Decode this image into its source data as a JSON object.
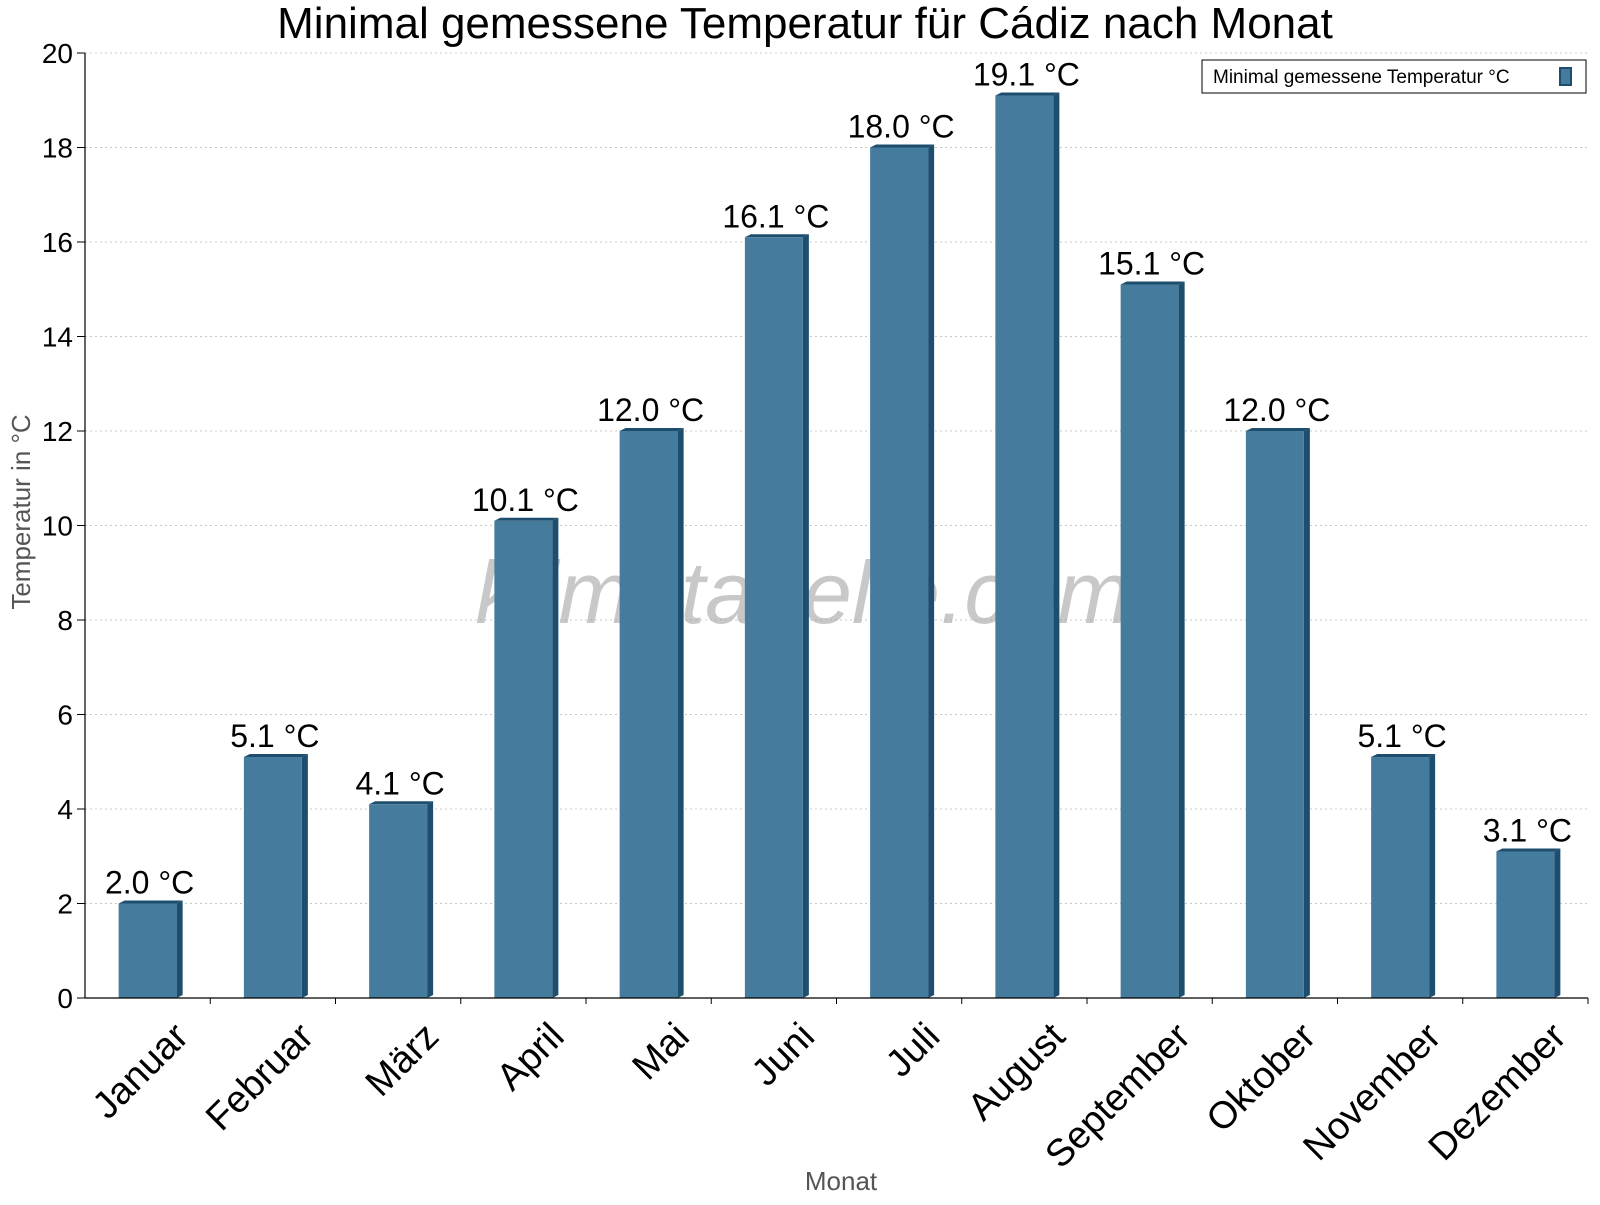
{
  "chart_data": {
    "type": "bar",
    "title": "Minimal gemessene Temperatur für Cádiz nach Monat",
    "xlabel": "Monat",
    "ylabel": "Temperatur in °C",
    "categories": [
      "Januar",
      "Februar",
      "März",
      "April",
      "Mai",
      "Juni",
      "Juli",
      "August",
      "September",
      "Oktober",
      "November",
      "Dezember"
    ],
    "series": [
      {
        "name": "Minimal gemessene Temperatur °C",
        "values": [
          2.0,
          5.1,
          4.1,
          10.1,
          12.0,
          16.1,
          18.0,
          19.1,
          15.1,
          12.0,
          5.1,
          3.1
        ],
        "data_labels": [
          "2.0 °C",
          "5.1 °C",
          "4.1 °C",
          "10.1 °C",
          "12.0 °C",
          "16.1 °C",
          "18.0 °C",
          "19.1 °C",
          "15.1 °C",
          "12.0 °C",
          "5.1 °C",
          "3.1 °C"
        ],
        "color": "#457b9d",
        "edge_color": "#1d4e6e"
      }
    ],
    "ylim": [
      0,
      20
    ],
    "yticks": [
      0,
      2,
      4,
      6,
      8,
      10,
      12,
      14,
      16,
      18,
      20
    ],
    "grid": true,
    "legend_position": "top-right",
    "watermark": "klimatabelle.com"
  }
}
